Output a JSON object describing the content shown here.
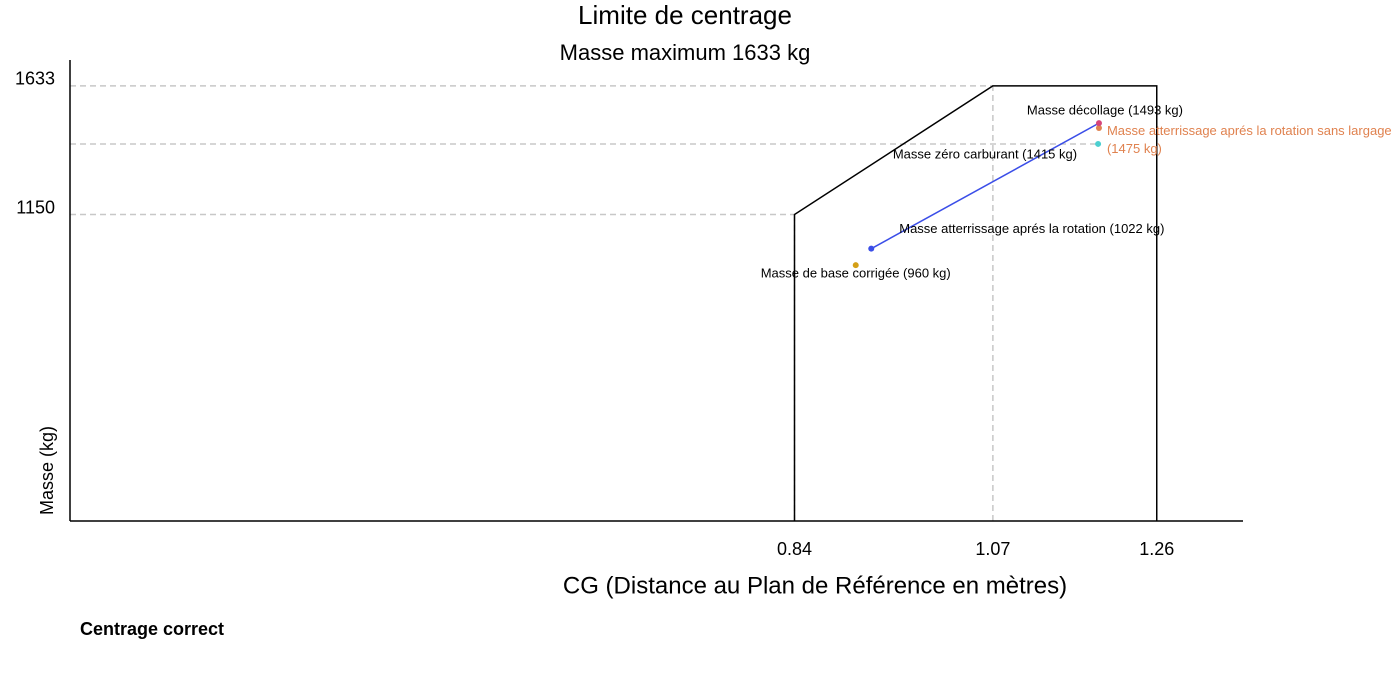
{
  "chart_data": {
    "type": "envelope",
    "title": "Limite de centrage",
    "subtitle": "Masse maximum 1633 kg",
    "x_label": "CG (Distance au Plan de Référence en mètres)",
    "y_label": "Masse (kg)",
    "xlim": [
      0,
      1.36
    ],
    "ylim": [
      0,
      1730
    ],
    "xticks": [
      0.84,
      1.07,
      1.26
    ],
    "yticks": [
      1150,
      1633
    ],
    "envelope": {
      "x": [
        0.84,
        0.84,
        1.07,
        1.26,
        1.26
      ],
      "y": [
        0,
        1150,
        1633,
        1633,
        0
      ],
      "color": "#000000"
    },
    "points": [
      {
        "name": "Masse de base corrigée (960 kg)",
        "x": 0.911,
        "y": 960,
        "color": "#d4a017"
      },
      {
        "name": "Masse atterrissage aprés la rotation (1022 kg)",
        "x": 0.929,
        "y": 1022,
        "color": "#3b4ee8",
        "connect_to": 4
      },
      {
        "name": "Masse zéro carburant (1415 kg)",
        "x": 1.192,
        "y": 1415,
        "color": "#4ccfd0",
        "dashed_guide": true
      },
      {
        "name": "Masse atterrissage aprés la rotation sans largage (1475 kg)",
        "x": 1.193,
        "y": 1475,
        "color": "#e0824f"
      },
      {
        "name": "Masse décollage (1493 kg)",
        "x": 1.193,
        "y": 1493,
        "color": "#d6457a"
      }
    ],
    "status": "Centrage correct",
    "status_color": "#3aa655"
  }
}
